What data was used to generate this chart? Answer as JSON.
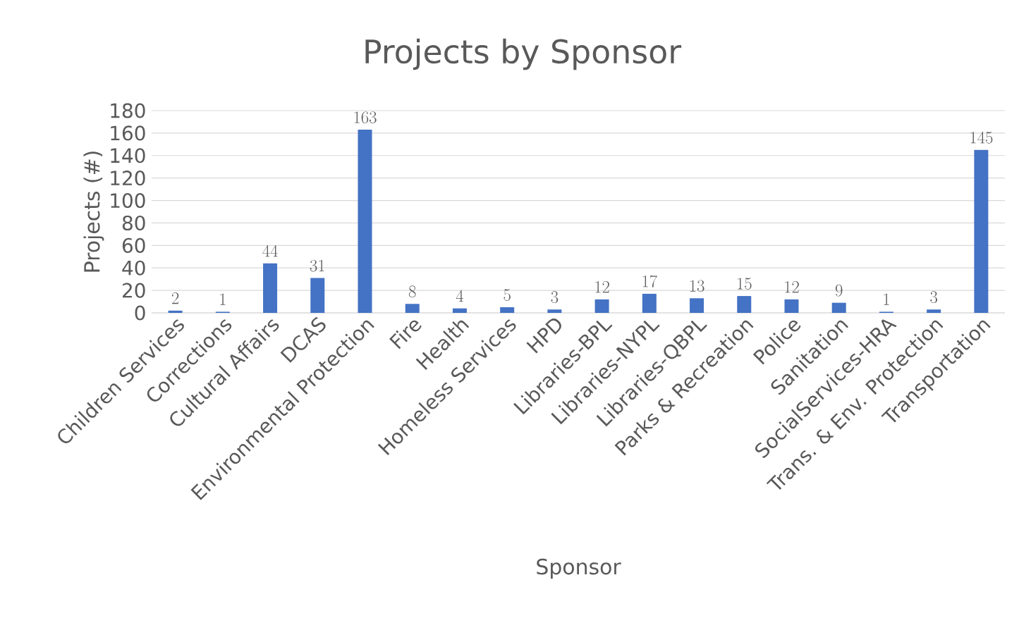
{
  "chart_data": {
    "type": "bar",
    "title": "Projects by Sponsor",
    "xlabel": "Sponsor",
    "ylabel": "Projects (#)",
    "categories": [
      "Children Services",
      "Corrections",
      "Cultural Affairs",
      "DCAS",
      "Environmental Protection",
      "Fire",
      "Health",
      "Homeless Services",
      "HPD",
      "Libraries-BPL",
      "Libraries-NYPL",
      "Libraries-QBPL",
      "Parks & Recreation",
      "Police",
      "Sanitation",
      "SocialServices-HRA",
      "Trans. & Env. Protection",
      "Transportation"
    ],
    "values": [
      2,
      1,
      44,
      31,
      163,
      8,
      4,
      5,
      3,
      12,
      17,
      13,
      15,
      12,
      9,
      1,
      3,
      145
    ],
    "color": "#4472c4",
    "ylim": [
      0,
      180
    ],
    "yticks": [
      0,
      20,
      40,
      60,
      80,
      100,
      120,
      140,
      160,
      180
    ],
    "grid": "y",
    "data_labels": true
  }
}
